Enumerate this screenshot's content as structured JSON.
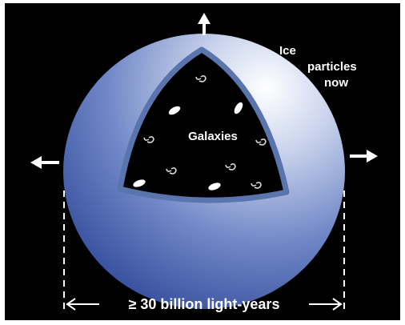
{
  "labels": {
    "ice_particles": [
      "Ice",
      "particles",
      "now"
    ],
    "galaxies": "Galaxies",
    "size": "≥ 30 billion light-years"
  }
}
